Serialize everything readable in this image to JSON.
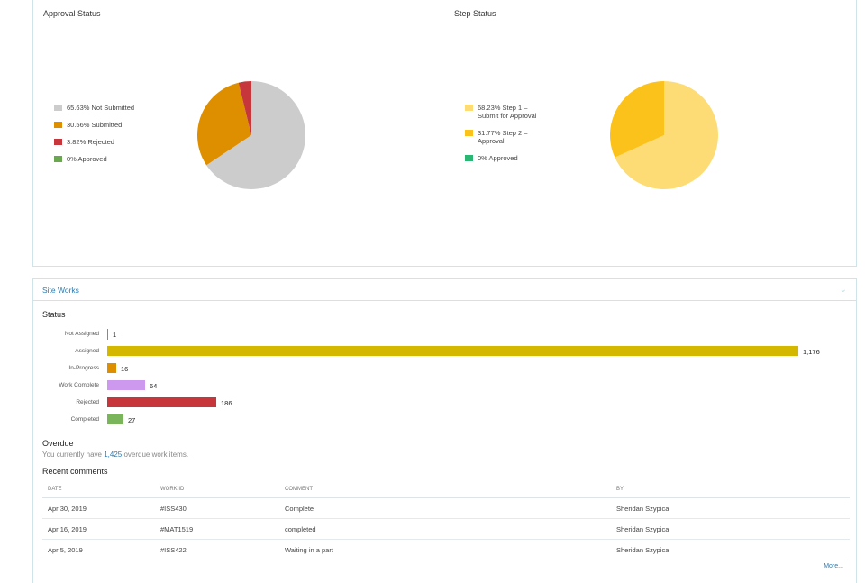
{
  "approval": {
    "title": "Approval Status",
    "legend": [
      {
        "label": "65.63% Not Submitted",
        "color": "#cccccc",
        "value": 65.63
      },
      {
        "label": "30.56% Submitted",
        "color": "#dd8f00",
        "value": 30.56
      },
      {
        "label": "3.82% Rejected",
        "color": "#c6363b",
        "value": 3.82
      },
      {
        "label": "0% Approved",
        "color": "#6aa84f",
        "value": 0
      }
    ]
  },
  "step": {
    "title": "Step Status",
    "legend": [
      {
        "label": "68.23% Step 1 –\nSubmit for Approval",
        "color": "#fedc75",
        "value": 68.23
      },
      {
        "label": "31.77% Step 2 –\nApproval",
        "color": "#fcc21c",
        "value": 31.77
      },
      {
        "label": "0% Approved",
        "color": "#2bb673",
        "value": 0
      }
    ]
  },
  "site_works": {
    "title": "Site Works",
    "status_label": "Status",
    "bars": [
      {
        "label": "Not Assigned",
        "value": 1,
        "display": "1",
        "color": "#888888"
      },
      {
        "label": "Assigned",
        "value": 1176,
        "display": "1,176",
        "color": "#d4b800"
      },
      {
        "label": "In-Progress",
        "value": 16,
        "display": "16",
        "color": "#dd8f00"
      },
      {
        "label": "Work Complete",
        "value": 64,
        "display": "64",
        "color": "#cc99ee"
      },
      {
        "label": "Rejected",
        "value": 186,
        "display": "186",
        "color": "#c6363b"
      },
      {
        "label": "Completed",
        "value": 27,
        "display": "27",
        "color": "#7ab55c"
      }
    ],
    "overdue_label": "Overdue",
    "overdue_prefix": "You currently have ",
    "overdue_count": "1,425",
    "overdue_suffix": " overdue work items.",
    "recent_label": "Recent comments",
    "columns": [
      "DATE",
      "WORK ID",
      "COMMENT",
      "BY"
    ],
    "rows": [
      [
        "Apr 30, 2019",
        "#ISS430",
        "Complete",
        "Sheridan Szypica"
      ],
      [
        "Apr 16, 2019",
        "#MAT1519",
        "completed",
        "Sheridan Szypica"
      ],
      [
        "Apr 5, 2019",
        "#ISS422",
        "Waiting in a part",
        "Sheridan Szypica"
      ]
    ],
    "more": "More..."
  }
}
